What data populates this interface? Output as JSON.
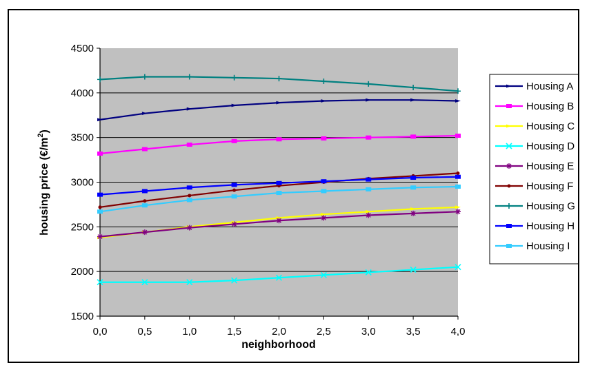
{
  "chart_data": {
    "type": "line",
    "title": "",
    "xlabel": "neighborhood",
    "ylabel": "housing price (€/m",
    "ylabel_sup": "2",
    "ylabel_close": ")",
    "xlim": [
      0.0,
      4.0
    ],
    "ylim": [
      1500,
      4500
    ],
    "xticks": [
      0.0,
      0.5,
      1.0,
      1.5,
      2.0,
      2.5,
      3.0,
      3.5,
      4.0
    ],
    "xtick_labels": [
      "0,0",
      "0,5",
      "1,0",
      "1,5",
      "2,0",
      "2,5",
      "3,0",
      "3,5",
      "4,0"
    ],
    "yticks": [
      1500,
      2000,
      2500,
      3000,
      3500,
      4000,
      4500
    ],
    "ytick_labels": [
      "1500",
      "2000",
      "2500",
      "3000",
      "3500",
      "4000",
      "4500"
    ],
    "grid": "horizontal",
    "plot_background": "#c0c0c0",
    "legend_position": "right",
    "x": [
      0.0,
      0.5,
      1.0,
      1.5,
      2.0,
      2.5,
      3.0,
      3.5,
      4.0
    ],
    "series": [
      {
        "name": "Housing A",
        "color": "#000080",
        "marker": "triangle",
        "values": [
          3700,
          3770,
          3820,
          3860,
          3890,
          3910,
          3920,
          3920,
          3910
        ]
      },
      {
        "name": "Housing B",
        "color": "#ff00ff",
        "marker": "square",
        "values": [
          3320,
          3370,
          3420,
          3460,
          3480,
          3490,
          3500,
          3510,
          3520
        ]
      },
      {
        "name": "Housing C",
        "color": "#ffff00",
        "marker": "triangle",
        "values": [
          2380,
          2440,
          2500,
          2550,
          2600,
          2640,
          2670,
          2700,
          2720
        ]
      },
      {
        "name": "Housing D",
        "color": "#00ffff",
        "marker": "x",
        "values": [
          1880,
          1880,
          1880,
          1900,
          1930,
          1960,
          1990,
          2020,
          2050
        ]
      },
      {
        "name": "Housing E",
        "color": "#800080",
        "marker": "star",
        "values": [
          2390,
          2440,
          2490,
          2530,
          2570,
          2600,
          2630,
          2650,
          2670
        ]
      },
      {
        "name": "Housing F",
        "color": "#800000",
        "marker": "circle",
        "values": [
          2720,
          2790,
          2850,
          2910,
          2960,
          3000,
          3040,
          3070,
          3100
        ]
      },
      {
        "name": "Housing G",
        "color": "#008080",
        "marker": "plus",
        "values": [
          4150,
          4180,
          4180,
          4170,
          4160,
          4130,
          4100,
          4060,
          4020
        ]
      },
      {
        "name": "Housing H",
        "color": "#0000ff",
        "marker": "square",
        "values": [
          2860,
          2900,
          2940,
          2970,
          2990,
          3010,
          3030,
          3050,
          3060
        ]
      },
      {
        "name": "Housing I",
        "color": "#33ccff",
        "marker": "square",
        "values": [
          2670,
          2740,
          2800,
          2840,
          2880,
          2900,
          2920,
          2940,
          2950
        ]
      }
    ]
  }
}
